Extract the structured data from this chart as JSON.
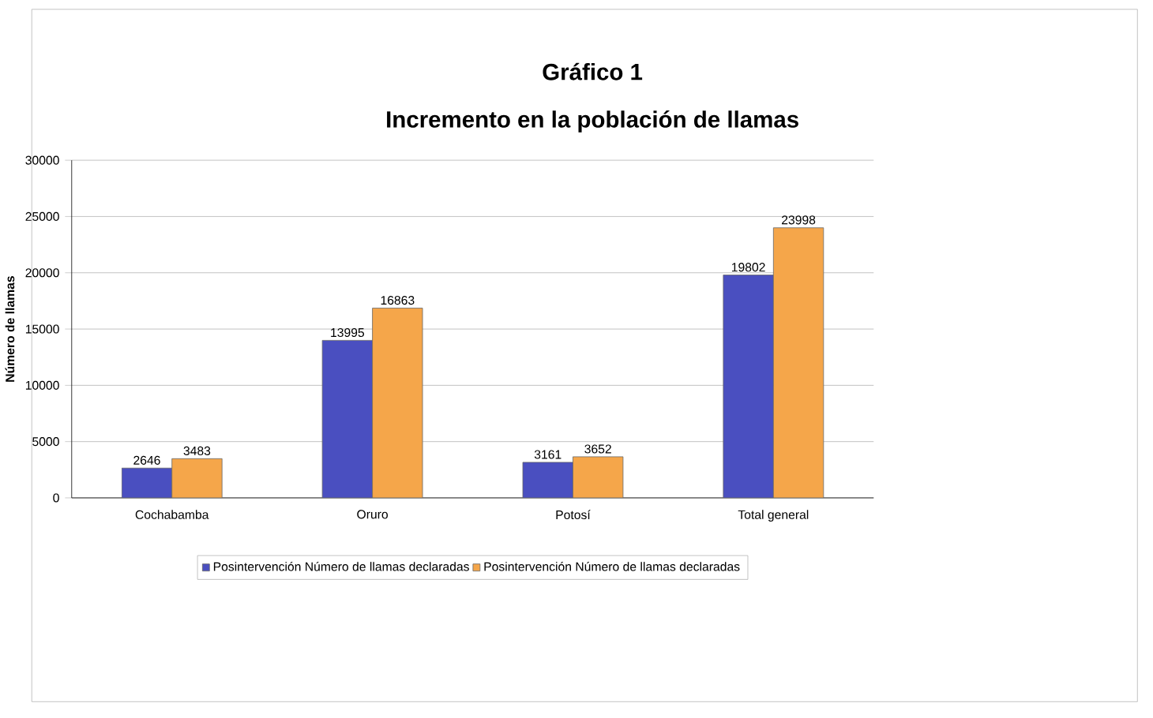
{
  "chart_data": {
    "type": "bar",
    "title": "Gráfico 1",
    "subtitle": "Incremento en la población de llamas",
    "ylabel": "Número de llamas",
    "categories": [
      "Cochabamba",
      "Oruro",
      "Potosí",
      "Total general"
    ],
    "series": [
      {
        "name": "Posintervención Número de llamas declaradas",
        "color": "#4a4fc0",
        "values": [
          2646,
          13995,
          3161,
          19802
        ]
      },
      {
        "name": "Posintervención Número de llamas declaradas",
        "color": "#f5a64a",
        "values": [
          3483,
          16863,
          3652,
          23998
        ]
      }
    ],
    "ylim": [
      0,
      30000
    ],
    "yticks": [
      0,
      5000,
      10000,
      15000,
      20000,
      25000,
      30000
    ],
    "grid": "y",
    "legend": "bottom",
    "data_labels": true
  }
}
